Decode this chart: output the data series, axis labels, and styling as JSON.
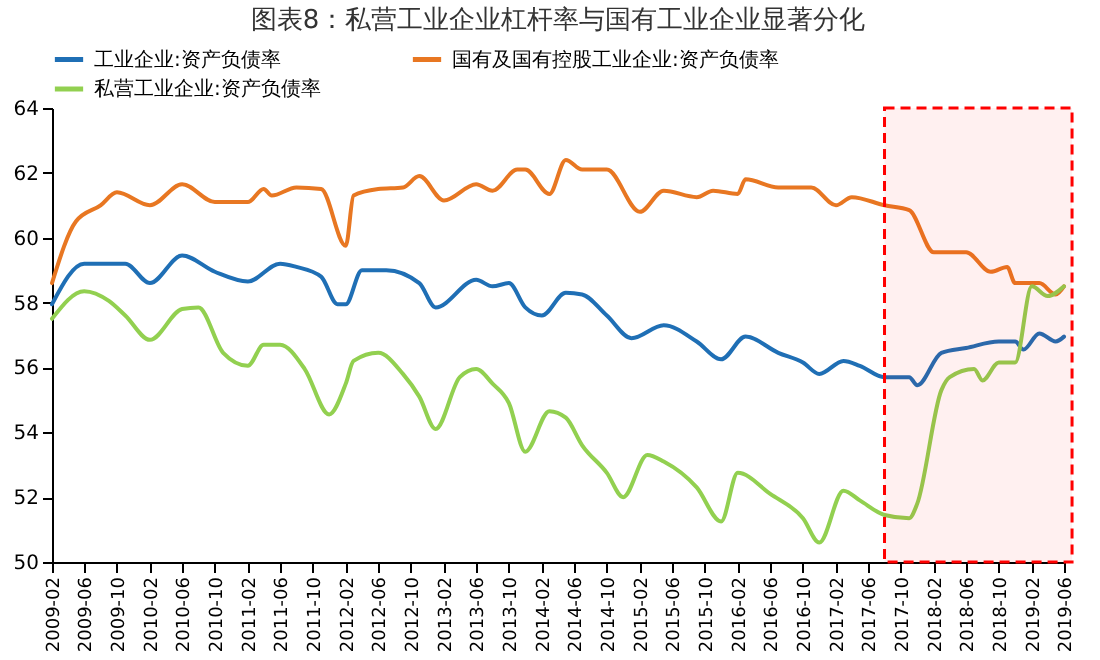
{
  "chart_data": {
    "type": "line",
    "title": "图表8：私营工业企业杠杆率与国有工业企业显著分化",
    "series": [
      {
        "name": "工业企业:资产负债率",
        "color": "#1f6fb5",
        "x": [
          "2009-02",
          "2009-06",
          "2009-11",
          "2010-02",
          "2010-06",
          "2010-10",
          "2011-02",
          "2011-06",
          "2011-08",
          "2011-11",
          "2012-01",
          "2012-02",
          "2012-04",
          "2012-07",
          "2012-11",
          "2013-01",
          "2013-06",
          "2013-08",
          "2013-10",
          "2013-12",
          "2014-02",
          "2014-05",
          "2014-07",
          "2014-10",
          "2015-01",
          "2015-05",
          "2015-09",
          "2015-12",
          "2016-03",
          "2016-07",
          "2016-10",
          "2016-12",
          "2017-03",
          "2017-05",
          "2017-08",
          "2017-11",
          "2017-12",
          "2018-03",
          "2018-06",
          "2018-10",
          "2018-12",
          "2019-01",
          "2019-03",
          "2019-05",
          "2019-06"
        ],
        "values": [
          57.95,
          59.2,
          59.2,
          58.6,
          59.45,
          58.95,
          58.65,
          59.2,
          59.1,
          58.8,
          57.95,
          57.95,
          59.0,
          59.0,
          58.6,
          57.85,
          58.7,
          58.5,
          58.6,
          57.85,
          57.6,
          58.3,
          58.25,
          57.6,
          56.9,
          57.3,
          56.8,
          56.25,
          56.95,
          56.45,
          56.15,
          55.8,
          56.2,
          56.05,
          55.7,
          55.7,
          55.45,
          56.45,
          56.6,
          56.8,
          56.8,
          56.55,
          57.05,
          56.8,
          56.95
        ]
      },
      {
        "name": "国有及国有控股工业企业:资产负债率",
        "color": "#e87722",
        "x": [
          "2009-02",
          "2009-05",
          "2009-08",
          "2009-10",
          "2010-02",
          "2010-06",
          "2010-10",
          "2011-02",
          "2011-04",
          "2011-05",
          "2011-08",
          "2011-11",
          "2012-02",
          "2012-03",
          "2012-06",
          "2012-09",
          "2012-11",
          "2013-02",
          "2013-06",
          "2013-08",
          "2013-11",
          "2013-12",
          "2014-03",
          "2014-05",
          "2014-07",
          "2014-10",
          "2015-02",
          "2015-05",
          "2015-09",
          "2015-11",
          "2016-02",
          "2016-03",
          "2016-07",
          "2016-11",
          "2017-02",
          "2017-04",
          "2017-08",
          "2017-11",
          "2018-02",
          "2018-06",
          "2018-09",
          "2018-11",
          "2018-12",
          "2019-03",
          "2019-05",
          "2019-06"
        ],
        "values": [
          58.6,
          60.5,
          61.0,
          61.4,
          61.0,
          61.65,
          61.1,
          61.1,
          61.5,
          61.3,
          61.55,
          61.5,
          59.75,
          61.3,
          61.5,
          61.55,
          61.9,
          61.15,
          61.65,
          61.45,
          62.1,
          62.1,
          61.35,
          62.4,
          62.1,
          62.1,
          60.8,
          61.45,
          61.25,
          61.45,
          61.35,
          61.8,
          61.55,
          61.55,
          61.0,
          61.25,
          61.0,
          60.85,
          59.55,
          59.55,
          58.95,
          59.1,
          58.6,
          58.6,
          58.25,
          58.5
        ]
      },
      {
        "name": "私营工业企业:资产负债率",
        "color": "#92d050",
        "x": [
          "2009-02",
          "2009-06",
          "2009-09",
          "2009-11",
          "2010-02",
          "2010-06",
          "2010-08",
          "2010-11",
          "2011-02",
          "2011-04",
          "2011-06",
          "2011-09",
          "2011-12",
          "2012-02",
          "2012-03",
          "2012-06",
          "2012-09",
          "2012-11",
          "2013-01",
          "2013-04",
          "2013-06",
          "2013-08",
          "2013-10",
          "2013-12",
          "2014-03",
          "2014-05",
          "2014-07",
          "2014-10",
          "2014-12",
          "2015-03",
          "2015-05",
          "2015-09",
          "2015-12",
          "2016-02",
          "2016-06",
          "2016-10",
          "2016-12",
          "2017-03",
          "2017-05",
          "2017-08",
          "2017-11",
          "2017-12",
          "2018-03",
          "2018-04",
          "2018-07",
          "2018-08",
          "2018-10",
          "2018-12",
          "2019-02",
          "2019-04",
          "2019-06"
        ],
        "values": [
          57.5,
          58.35,
          58.05,
          57.6,
          56.85,
          57.8,
          57.85,
          56.45,
          56.05,
          56.7,
          56.7,
          55.95,
          54.55,
          55.5,
          56.2,
          56.45,
          55.8,
          55.1,
          54.1,
          55.7,
          55.95,
          55.5,
          54.9,
          53.4,
          54.65,
          54.45,
          53.6,
          52.75,
          52.0,
          53.3,
          53.1,
          52.3,
          51.25,
          52.75,
          52.1,
          51.35,
          50.6,
          52.2,
          51.9,
          51.45,
          51.35,
          51.8,
          55.3,
          55.7,
          55.95,
          55.6,
          56.15,
          56.15,
          58.5,
          58.2,
          58.5
        ]
      }
    ],
    "xlim": [
      "2009-02",
      "2019-06"
    ],
    "xticks": [
      "2009-02",
      "2009-06",
      "2009-10",
      "2010-02",
      "2010-06",
      "2010-10",
      "2011-02",
      "2011-06",
      "2011-10",
      "2012-02",
      "2012-06",
      "2012-10",
      "2013-02",
      "2013-06",
      "2013-10",
      "2014-02",
      "2014-06",
      "2014-10",
      "2015-02",
      "2015-06",
      "2015-10",
      "2016-02",
      "2016-06",
      "2016-10",
      "2017-02",
      "2017-06",
      "2017-10",
      "2018-02",
      "2018-06",
      "2018-10",
      "2019-02",
      "2019-06"
    ],
    "ylim": [
      50,
      64
    ],
    "yticks": [
      50,
      52,
      54,
      56,
      58,
      60,
      62,
      64
    ],
    "bands": [
      {
        "axis": "x",
        "from": "2017-08",
        "to": "2019-07",
        "color": "#ff0000"
      }
    ],
    "grid": false,
    "legend": "top",
    "marker": "none",
    "line_style": "solid"
  }
}
